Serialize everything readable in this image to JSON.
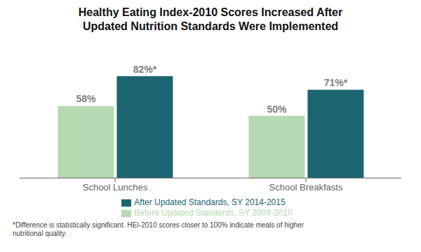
{
  "chart_data": {
    "type": "bar",
    "title": "Healthy Eating Index-2010 Scores Increased After\nUpdated Nutrition Standards Were Implemented",
    "categories": [
      "School Lunches",
      "School Breakfasts"
    ],
    "series": [
      {
        "name": "Before Updated Standards, SY 2009-2010",
        "color": "#b5d9b0",
        "values": [
          58,
          50
        ],
        "value_labels": [
          "58%",
          "50%"
        ]
      },
      {
        "name": "After Updated Standards, SY 2014-2015",
        "color": "#1b6570",
        "values": [
          82,
          71
        ],
        "value_labels": [
          "82%*",
          "71%*"
        ]
      }
    ],
    "ylim": [
      0,
      105
    ],
    "tick_labels": "x",
    "data_labels": true,
    "legend": "bottom",
    "annotations": [
      "*Difference is statistically significant. HEI-2010 scores closer to 100% indicate meals of higher\nnutritional quality."
    ]
  }
}
